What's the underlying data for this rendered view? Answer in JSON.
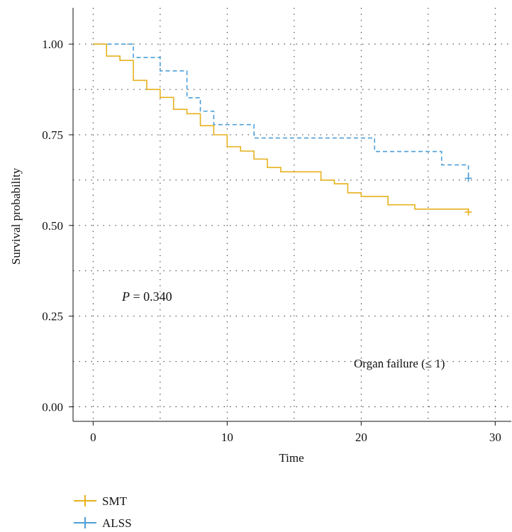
{
  "chart_data": {
    "type": "line",
    "step": true,
    "xlabel": "Time",
    "ylabel": "Survival probability",
    "xlim": [
      -1.5,
      31.2
    ],
    "ylim": [
      -0.04,
      1.1
    ],
    "x_ticks": [
      0,
      10,
      20,
      30
    ],
    "y_ticks": [
      0.0,
      0.25,
      0.5,
      0.75,
      1.0
    ],
    "x_tick_labels": [
      "0",
      "10",
      "20",
      "30"
    ],
    "y_tick_labels": [
      "0.00",
      "0.25",
      "0.50",
      "0.75",
      "1.00"
    ],
    "grid": true,
    "legend_position": "bottom-left",
    "annotations": {
      "pvalue_label": "P",
      "pvalue_text": " = 0.340",
      "subset_label": "Organ failure (≤ 1)"
    },
    "series": [
      {
        "name": "SMT",
        "color": "#E6B11D",
        "dash": "solid",
        "x": [
          0,
          1,
          2,
          3,
          4,
          5,
          6,
          7,
          8,
          9,
          10,
          11,
          12,
          13,
          14,
          17,
          18,
          19,
          20,
          22,
          24,
          28
        ],
        "y": [
          1.0,
          0.967,
          0.955,
          0.9,
          0.875,
          0.853,
          0.82,
          0.808,
          0.775,
          0.75,
          0.717,
          0.705,
          0.683,
          0.66,
          0.648,
          0.625,
          0.615,
          0.59,
          0.58,
          0.557,
          0.545,
          0.537
        ],
        "censor_x": [
          28
        ],
        "censor_y": [
          0.537
        ]
      },
      {
        "name": "ALSS",
        "color": "#4D9FD6",
        "dash": "dashed",
        "x": [
          0,
          3,
          5,
          7,
          8,
          9,
          12,
          21,
          26,
          28
        ],
        "y": [
          1.0,
          0.963,
          0.926,
          0.852,
          0.815,
          0.778,
          0.741,
          0.704,
          0.667,
          0.63
        ],
        "censor_x": [
          28
        ],
        "censor_y": [
          0.63
        ]
      }
    ]
  }
}
